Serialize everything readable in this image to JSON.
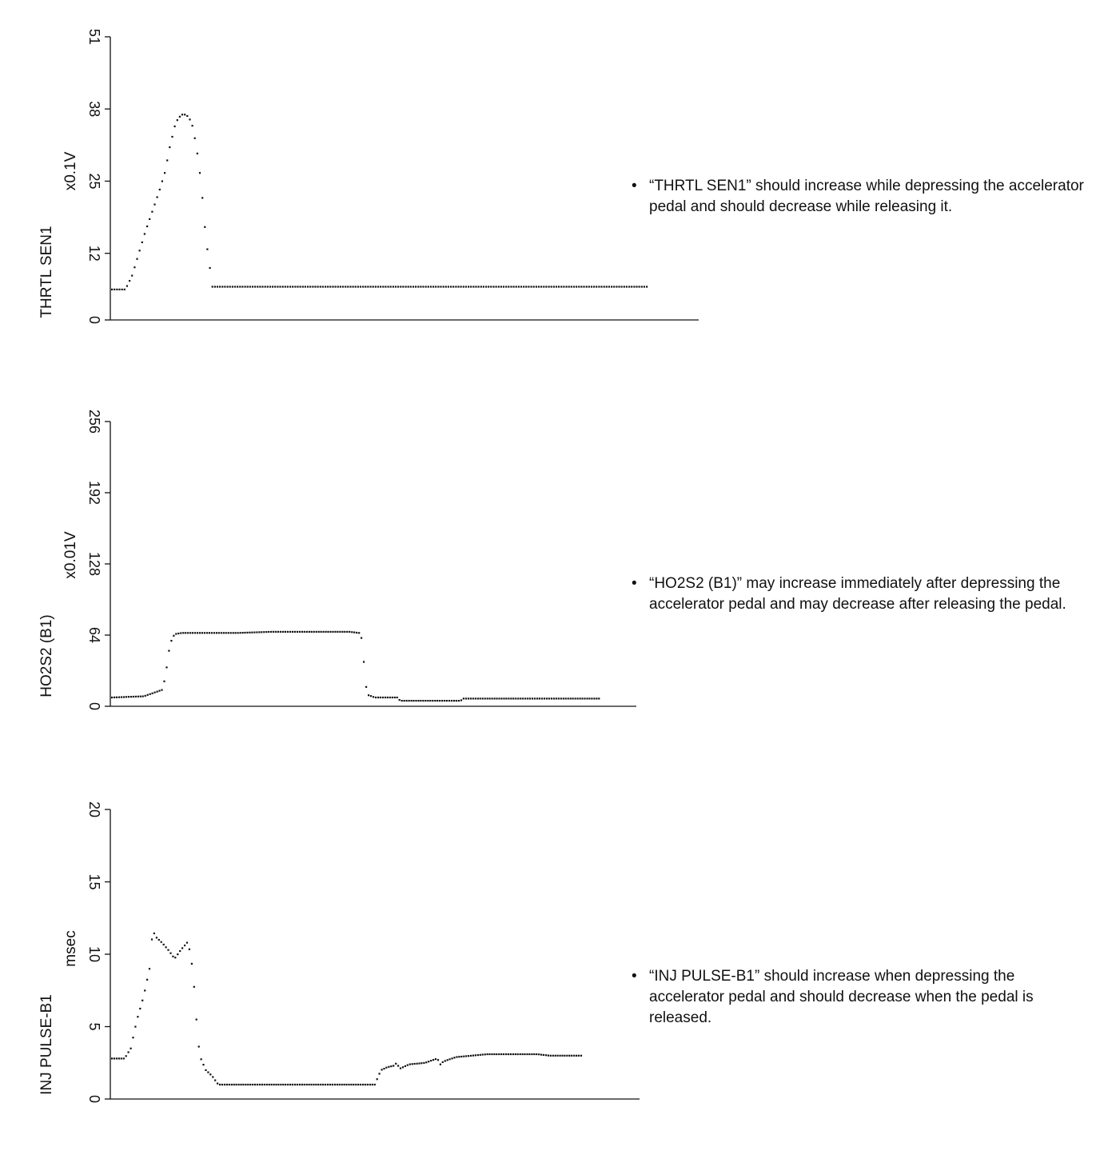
{
  "chart_data": [
    {
      "type": "scatter",
      "title": "",
      "xlabel": "",
      "ylabel": "THRTL SEN1",
      "unit": "x0.1V",
      "yticks": [
        0,
        12,
        25,
        38,
        51
      ],
      "ylim": [
        0,
        51
      ],
      "xlim": [
        0,
        160
      ],
      "grid": false,
      "series": [
        {
          "name": "THRTL SEN1",
          "x": [
            0,
            4,
            6,
            8,
            10,
            12,
            14,
            16,
            17,
            18,
            19,
            20,
            21,
            22,
            23,
            24,
            25,
            26,
            27,
            28,
            30,
            160
          ],
          "y": [
            5.5,
            5.5,
            8,
            12,
            16,
            19.5,
            23,
            27,
            30.5,
            33,
            35.5,
            36.5,
            37,
            37,
            36.5,
            35,
            32,
            28,
            22,
            15,
            6,
            6
          ]
        }
      ],
      "note": "“THRTL SEN1” should increase while depressing the accelerator pedal and should decrease while releasing it."
    },
    {
      "type": "scatter",
      "title": "",
      "xlabel": "",
      "ylabel": "HO2S2 (B1)",
      "unit": "x0.01V",
      "yticks": [
        0,
        64,
        128,
        192,
        256
      ],
      "ylim": [
        0,
        256
      ],
      "xlim": [
        0,
        160
      ],
      "grid": false,
      "series": [
        {
          "name": "HO2S2 (B1)",
          "x": [
            0,
            10,
            16,
            17,
            18,
            19,
            20,
            22,
            30,
            40,
            50,
            60,
            70,
            75,
            78,
            79,
            80,
            81,
            82,
            83,
            90,
            91,
            92,
            110,
            111,
            154
          ],
          "y": [
            8,
            9,
            15,
            30,
            50,
            62,
            65,
            66,
            66,
            66,
            67,
            67,
            67,
            67,
            66,
            60,
            20,
            10,
            9,
            8,
            8,
            5,
            5,
            5,
            7,
            7
          ]
        }
      ],
      "note": "“HO2S2 (B1)” may increase immediately after depressing the accelerator pedal and may decrease after releasing the pedal."
    },
    {
      "type": "scatter",
      "title": "",
      "xlabel": "",
      "ylabel": "INJ PULSE-B1",
      "unit": "msec",
      "yticks": [
        0,
        5,
        10,
        15,
        20
      ],
      "ylim": [
        0,
        20
      ],
      "xlim": [
        0,
        160
      ],
      "grid": false,
      "series": [
        {
          "name": "INJ PULSE-B1",
          "x": [
            0,
            4,
            6,
            8,
            10,
            12,
            13,
            14,
            16,
            18,
            20,
            22,
            24,
            25,
            26,
            27,
            28,
            30,
            32,
            34,
            37,
            38,
            40,
            60,
            84,
            85,
            86,
            88,
            90,
            91,
            92,
            95,
            100,
            104,
            105,
            106,
            110,
            115,
            120,
            130,
            136,
            140,
            150
          ],
          "y": [
            2.8,
            2.8,
            3.5,
            5.5,
            7,
            9,
            11.7,
            11.2,
            10.8,
            10.3,
            9.7,
            10.3,
            10.8,
            10.2,
            8.5,
            5.5,
            3,
            2,
            1.6,
            1,
            1,
            1,
            1,
            1,
            1,
            1.5,
            2,
            2.2,
            2.3,
            2.5,
            2.1,
            2.4,
            2.5,
            2.8,
            2.4,
            2.6,
            2.9,
            3.0,
            3.1,
            3.1,
            3.1,
            3.0,
            3.0
          ]
        }
      ],
      "note": "“INJ PULSE-B1” should increase when depressing the accelerator pedal and should decrease when the pedal is released."
    }
  ],
  "bullet_symbol": "•"
}
